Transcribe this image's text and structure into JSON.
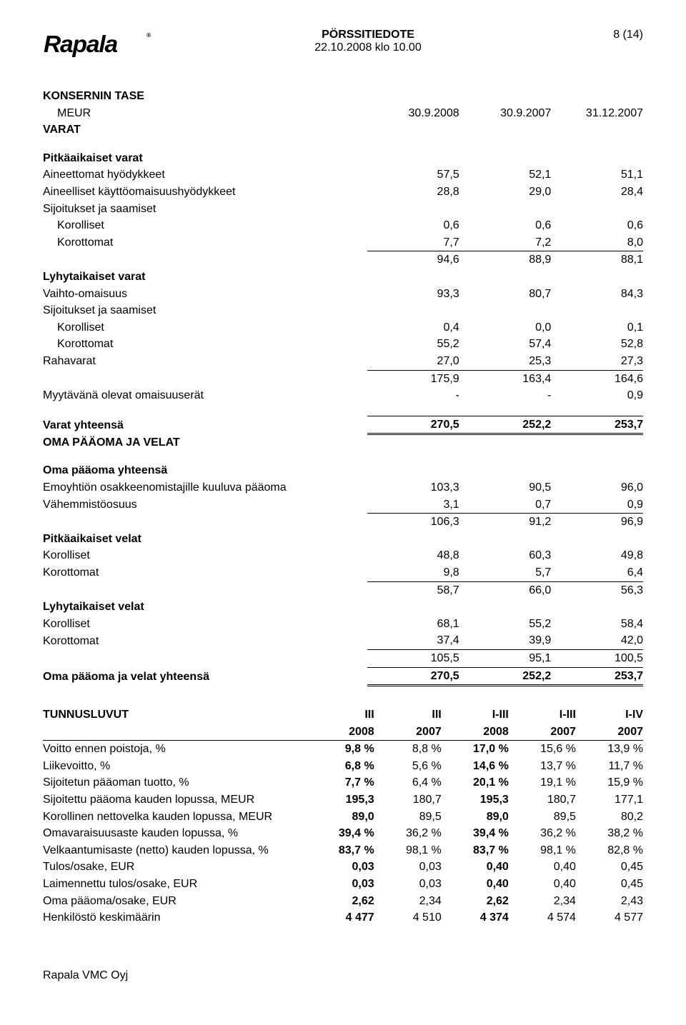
{
  "header": {
    "title": "PÖRSSITIEDOTE",
    "datetime": "22.10.2008 klo 10.00",
    "page": "8 (14)"
  },
  "balance": {
    "title": "KONSERNIN TASE",
    "unit_row": {
      "label": "MEUR",
      "c1": "30.9.2008",
      "c2": "30.9.2007",
      "c3": "31.12.2007"
    },
    "varat_title": "VARAT",
    "rows": [
      {
        "type": "blank"
      },
      {
        "type": "sec",
        "label": "Pitkäaikaiset varat"
      },
      {
        "type": "row",
        "label": "Aineettomat hyödykkeet",
        "c1": "57,5",
        "c2": "52,1",
        "c3": "51,1"
      },
      {
        "type": "row",
        "label": "Aineelliset käyttöomaisuushyödykkeet",
        "c1": "28,8",
        "c2": "29,0",
        "c3": "28,4"
      },
      {
        "type": "row",
        "label": "Sijoitukset ja saamiset"
      },
      {
        "type": "ind",
        "label": "Korolliset",
        "c1": "0,6",
        "c2": "0,6",
        "c3": "0,6"
      },
      {
        "type": "ind",
        "label": "Korottomat",
        "c1": "7,7",
        "c2": "7,2",
        "c3": "8,0"
      },
      {
        "type": "sum",
        "label": "",
        "c1": "94,6",
        "c2": "88,9",
        "c3": "88,1"
      },
      {
        "type": "sec",
        "label": "Lyhytaikaiset varat"
      },
      {
        "type": "row",
        "label": "Vaihto-omaisuus",
        "c1": "93,3",
        "c2": "80,7",
        "c3": "84,3"
      },
      {
        "type": "row",
        "label": "Sijoitukset ja saamiset"
      },
      {
        "type": "ind",
        "label": "Korolliset",
        "c1": "0,4",
        "c2": "0,0",
        "c3": "0,1"
      },
      {
        "type": "ind",
        "label": "Korottomat",
        "c1": "55,2",
        "c2": "57,4",
        "c3": "52,8"
      },
      {
        "type": "row",
        "label": "Rahavarat",
        "c1": "27,0",
        "c2": "25,3",
        "c3": "27,3"
      },
      {
        "type": "sum",
        "label": "",
        "c1": "175,9",
        "c2": "163,4",
        "c3": "164,6"
      },
      {
        "type": "row",
        "label": "Myytävänä olevat omaisuuserät",
        "c1": "-",
        "c2": "-",
        "c3": "0,9"
      },
      {
        "type": "blank"
      },
      {
        "type": "doub",
        "label": "Varat yhteensä",
        "bold": true,
        "c1": "270,5",
        "c2": "252,2",
        "c3": "253,7"
      },
      {
        "type": "sec",
        "label": "OMA PÄÄOMA JA VELAT"
      },
      {
        "type": "blank"
      },
      {
        "type": "sec",
        "label": "Oma pääoma yhteensä"
      },
      {
        "type": "row",
        "label": "Emoyhtiön osakkeenomistajille kuuluva pääoma",
        "c1": "103,3",
        "c2": "90,5",
        "c3": "96,0"
      },
      {
        "type": "row",
        "label": "Vähemmistöosuus",
        "c1": "3,1",
        "c2": "0,7",
        "c3": "0,9"
      },
      {
        "type": "sum",
        "label": "",
        "c1": "106,3",
        "c2": "91,2",
        "c3": "96,9"
      },
      {
        "type": "sec",
        "label": "Pitkäaikaiset velat"
      },
      {
        "type": "row",
        "label": "Korolliset",
        "c1": "48,8",
        "c2": "60,3",
        "c3": "49,8"
      },
      {
        "type": "row",
        "label": "Korottomat",
        "c1": "9,8",
        "c2": "5,7",
        "c3": "6,4"
      },
      {
        "type": "sum",
        "label": "",
        "c1": "58,7",
        "c2": "66,0",
        "c3": "56,3"
      },
      {
        "type": "sec",
        "label": "Lyhytaikaiset velat"
      },
      {
        "type": "row",
        "label": "Korolliset",
        "c1": "68,1",
        "c2": "55,2",
        "c3": "58,4"
      },
      {
        "type": "row",
        "label": "Korottomat",
        "c1": "37,4",
        "c2": "39,9",
        "c3": "42,0"
      },
      {
        "type": "sum",
        "label": "",
        "c1": "105,5",
        "c2": "95,1",
        "c3": "100,5"
      },
      {
        "type": "doub",
        "label": "Oma pääoma ja velat yhteensä",
        "bold": true,
        "c1": "270,5",
        "c2": "252,2",
        "c3": "253,7"
      }
    ]
  },
  "tunnusluvut": {
    "title": "TUNNUSLUVUT",
    "head1": {
      "c1": "III",
      "c2": "III",
      "c3": "I-III",
      "c4": "I-III",
      "c5": "I-IV"
    },
    "head2": {
      "c1": "2008",
      "c2": "2007",
      "c3": "2008",
      "c4": "2007",
      "c5": "2007"
    },
    "rows": [
      {
        "label": "Voitto ennen poistoja, %",
        "c1": "9,8 %",
        "c2": "8,8 %",
        "c3": "17,0 %",
        "c4": "15,6 %",
        "c5": "13,9 %"
      },
      {
        "label": "Liikevoitto, %",
        "c1": "6,8 %",
        "c2": "5,6 %",
        "c3": "14,6 %",
        "c4": "13,7 %",
        "c5": "11,7 %"
      },
      {
        "label": "Sijoitetun pääoman tuotto, %",
        "c1": "7,7 %",
        "c2": "6,4 %",
        "c3": "20,1 %",
        "c4": "19,1 %",
        "c5": "15,9 %"
      },
      {
        "label": "Sijoitettu pääoma kauden lopussa, MEUR",
        "c1": "195,3",
        "c2": "180,7",
        "c3": "195,3",
        "c4": "180,7",
        "c5": "177,1"
      },
      {
        "label": "Korollinen nettovelka kauden lopussa, MEUR",
        "c1": "89,0",
        "c2": "89,5",
        "c3": "89,0",
        "c4": "89,5",
        "c5": "80,2"
      },
      {
        "label": "Omavaraisuusaste kauden lopussa, %",
        "c1": "39,4 %",
        "c2": "36,2 %",
        "c3": "39,4 %",
        "c4": "36,2 %",
        "c5": "38,2 %"
      },
      {
        "label": "Velkaantumisaste (netto) kauden lopussa, %",
        "c1": "83,7 %",
        "c2": "98,1 %",
        "c3": "83,7 %",
        "c4": "98,1 %",
        "c5": "82,8 %"
      },
      {
        "label": "Tulos/osake, EUR",
        "c1": "0,03",
        "c2": "0,03",
        "c3": "0,40",
        "c4": "0,40",
        "c5": "0,45"
      },
      {
        "label": "Laimennettu tulos/osake, EUR",
        "c1": "0,03",
        "c2": "0,03",
        "c3": "0,40",
        "c4": "0,40",
        "c5": "0,45"
      },
      {
        "label": "Oma pääoma/osake, EUR",
        "c1": "2,62",
        "c2": "2,34",
        "c3": "2,62",
        "c4": "2,34",
        "c5": "2,43"
      },
      {
        "label": "Henkilöstö keskimäärin",
        "c1": "4 477",
        "c2": "4 510",
        "c3": "4 374",
        "c4": "4 574",
        "c5": "4 577"
      }
    ]
  },
  "footer": "Rapala VMC Oyj"
}
